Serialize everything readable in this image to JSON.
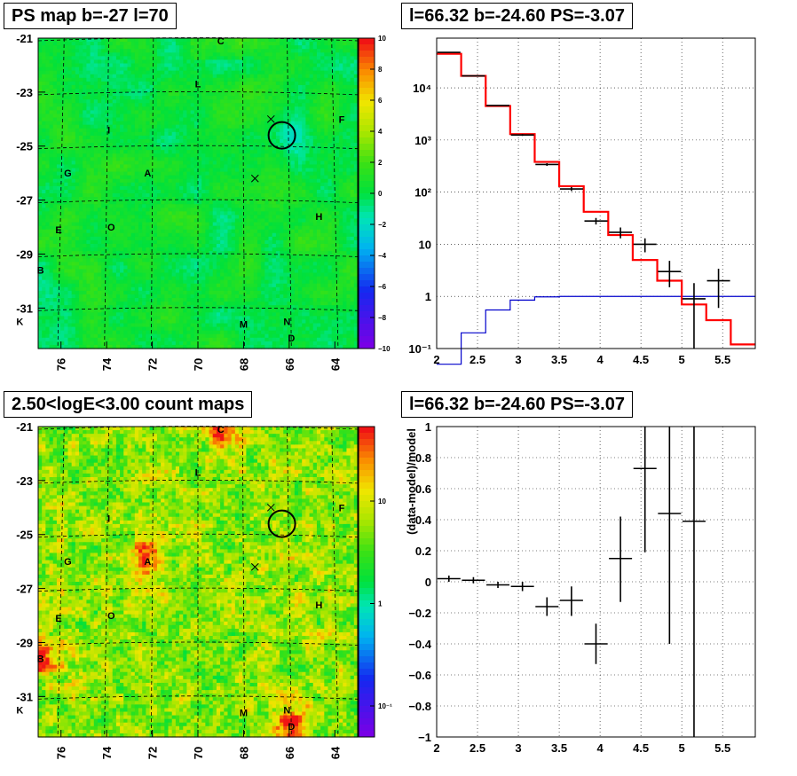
{
  "titles": {
    "top_left": "PS map b=-27 l=70",
    "top_right": "l=66.32 b=-24.60 PS=-3.07",
    "bottom_left": "2.50<logE<3.00 count maps",
    "bottom_right": "l=66.32 b=-24.60 PS=-3.07"
  },
  "colors": {
    "model_line": "#ff0000",
    "background_line": "#0000cc",
    "data_marker": "#000000",
    "highlight_circle": "#000000"
  },
  "chart_data": [
    {
      "type": "heatmap",
      "title": "PS map b=-27 l=70",
      "xlim": [
        63,
        77
      ],
      "ylim": [
        -32.5,
        -21
      ],
      "x_reversed": true,
      "xticks": [
        "76",
        "74",
        "72",
        "70",
        "68",
        "66",
        "64"
      ],
      "yticks": [
        "-21",
        "-23",
        "-25",
        "-27",
        "-29",
        "-31"
      ],
      "colorbar": {
        "range": [
          -10,
          10
        ],
        "ticks": [
          "10",
          "8",
          "6",
          "4",
          "2",
          "0",
          "−2",
          "−4",
          "−6",
          "−8",
          "−10"
        ]
      },
      "source_labels": [
        {
          "label": "C",
          "l": 69.0,
          "b": -21.1
        },
        {
          "label": "L",
          "l": 70.0,
          "b": -22.7
        },
        {
          "label": "F",
          "l": 63.7,
          "b": -24.0
        },
        {
          "label": "I",
          "l": 73.9,
          "b": -24.4
        },
        {
          "label": "G",
          "l": 75.7,
          "b": -26.0
        },
        {
          "label": "A",
          "l": 72.2,
          "b": -26.0
        },
        {
          "label": "H",
          "l": 64.7,
          "b": -27.6
        },
        {
          "label": "O",
          "l": 73.8,
          "b": -28.0
        },
        {
          "label": "E",
          "l": 76.1,
          "b": -28.1
        },
        {
          "label": "B",
          "l": 76.9,
          "b": -29.6
        },
        {
          "label": "K",
          "l": 77.8,
          "b": -31.5
        },
        {
          "label": "M",
          "l": 68.0,
          "b": -31.6
        },
        {
          "label": "N",
          "l": 66.1,
          "b": -31.5
        },
        {
          "label": "D",
          "l": 65.9,
          "b": -32.1
        }
      ],
      "crosses": [
        {
          "l": 66.8,
          "b": -24.0
        },
        {
          "l": 67.5,
          "b": -26.2
        }
      ],
      "circle": {
        "l": 66.32,
        "b": -24.6
      }
    },
    {
      "type": "line",
      "title": "l=66.32 b=-24.60 PS=-3.07",
      "xlim": [
        2,
        5.9
      ],
      "ylim": [
        0.1,
        90000
      ],
      "y_scale": "log",
      "xticks": [
        "2",
        "2.5",
        "3",
        "3.5",
        "4",
        "4.5",
        "5",
        "5.5"
      ],
      "yticks": [
        "10⁻¹",
        "1",
        "10",
        "10²",
        "10³",
        "10⁴"
      ],
      "grid": true,
      "steps_x": [
        2.0,
        2.3,
        2.6,
        2.9,
        3.2,
        3.5,
        3.8,
        4.1,
        4.4,
        4.7,
        5.0,
        5.3,
        5.6,
        5.9
      ],
      "model_red": [
        45000,
        17000,
        4500,
        1300,
        380,
        130,
        42,
        15,
        5,
        2,
        0.7,
        0.35,
        0.12
      ],
      "background_blue": [
        0.05,
        0.2,
        0.55,
        0.85,
        0.98,
        1.0,
        1.0,
        1.0,
        1.0,
        1.0,
        1.0,
        1.0,
        1.0
      ],
      "data_points": [
        {
          "x": 2.15,
          "y": 48000,
          "ylo": 47000,
          "yhi": 49000
        },
        {
          "x": 2.45,
          "y": 17000,
          "ylo": 16700,
          "yhi": 17300
        },
        {
          "x": 2.75,
          "y": 4600,
          "ylo": 4500,
          "yhi": 4700
        },
        {
          "x": 3.05,
          "y": 1250,
          "ylo": 1200,
          "yhi": 1300
        },
        {
          "x": 3.35,
          "y": 340,
          "ylo": 320,
          "yhi": 360
        },
        {
          "x": 3.65,
          "y": 115,
          "ylo": 105,
          "yhi": 125
        },
        {
          "x": 3.95,
          "y": 28,
          "ylo": 24,
          "yhi": 32
        },
        {
          "x": 4.25,
          "y": 17,
          "ylo": 13,
          "yhi": 21
        },
        {
          "x": 4.55,
          "y": 10,
          "ylo": 7,
          "yhi": 13
        },
        {
          "x": 4.85,
          "y": 3,
          "ylo": 1.5,
          "yhi": 4.8
        },
        {
          "x": 5.15,
          "y": 0.9,
          "ylo": 0.1,
          "yhi": 1.8
        },
        {
          "x": 5.45,
          "y": 2,
          "ylo": 0.6,
          "yhi": 3.4
        }
      ]
    },
    {
      "type": "heatmap",
      "title": "2.50<logE<3.00 count maps",
      "xlim": [
        63,
        77
      ],
      "ylim": [
        -32.5,
        -21
      ],
      "x_reversed": true,
      "xticks": [
        "76",
        "74",
        "72",
        "70",
        "68",
        "66",
        "64"
      ],
      "yticks": [
        "-21",
        "-23",
        "-25",
        "-27",
        "-29",
        "-31"
      ],
      "colorbar": {
        "scale": "log",
        "ticks": [
          "10",
          "1",
          "10⁻¹"
        ]
      },
      "hotspots": [
        {
          "label": "A",
          "l": 72.2,
          "b": -26.0
        },
        {
          "label": "B",
          "l": 76.9,
          "b": -29.6
        },
        {
          "label": "C",
          "l": 69.0,
          "b": -21.1
        },
        {
          "label": "D",
          "l": 65.9,
          "b": -32.1
        }
      ],
      "source_labels": [
        {
          "label": "C",
          "l": 69.0,
          "b": -21.1
        },
        {
          "label": "L",
          "l": 70.0,
          "b": -22.7
        },
        {
          "label": "F",
          "l": 63.7,
          "b": -24.0
        },
        {
          "label": "I",
          "l": 73.9,
          "b": -24.4
        },
        {
          "label": "G",
          "l": 75.7,
          "b": -26.0
        },
        {
          "label": "A",
          "l": 72.2,
          "b": -26.0
        },
        {
          "label": "H",
          "l": 64.7,
          "b": -27.6
        },
        {
          "label": "O",
          "l": 73.8,
          "b": -28.0
        },
        {
          "label": "E",
          "l": 76.1,
          "b": -28.1
        },
        {
          "label": "B",
          "l": 76.9,
          "b": -29.6
        },
        {
          "label": "K",
          "l": 77.8,
          "b": -31.5
        },
        {
          "label": "M",
          "l": 68.0,
          "b": -31.6
        },
        {
          "label": "N",
          "l": 66.1,
          "b": -31.5
        },
        {
          "label": "D",
          "l": 65.9,
          "b": -32.1
        }
      ],
      "crosses": [
        {
          "l": 66.8,
          "b": -24.0
        },
        {
          "l": 67.5,
          "b": -26.2
        }
      ],
      "circle": {
        "l": 66.32,
        "b": -24.6
      }
    },
    {
      "type": "scatter",
      "title": "l=66.32 b=-24.60 PS=-3.07",
      "ylabel": "(data-model)/model",
      "xlim": [
        2,
        5.9
      ],
      "ylim": [
        -1,
        1
      ],
      "xticks": [
        "2",
        "2.5",
        "3",
        "3.5",
        "4",
        "4.5",
        "5",
        "5.5"
      ],
      "yticks": [
        "1",
        "0.8",
        "0.6",
        "0.4",
        "0.2",
        "0",
        "−0.2",
        "−0.4",
        "−0.6",
        "−0.8",
        "−1"
      ],
      "grid": true,
      "data_points": [
        {
          "x": 2.15,
          "y": 0.02,
          "ylo": 0.0,
          "yhi": 0.04
        },
        {
          "x": 2.45,
          "y": 0.01,
          "ylo": -0.01,
          "yhi": 0.03
        },
        {
          "x": 2.75,
          "y": -0.02,
          "ylo": -0.04,
          "yhi": 0.0
        },
        {
          "x": 3.05,
          "y": -0.03,
          "ylo": -0.06,
          "yhi": 0.0
        },
        {
          "x": 3.35,
          "y": -0.16,
          "ylo": -0.22,
          "yhi": -0.1
        },
        {
          "x": 3.65,
          "y": -0.12,
          "ylo": -0.22,
          "yhi": -0.03
        },
        {
          "x": 3.95,
          "y": -0.4,
          "ylo": -0.53,
          "yhi": -0.27
        },
        {
          "x": 4.25,
          "y": 0.15,
          "ylo": -0.13,
          "yhi": 0.42
        },
        {
          "x": 4.55,
          "y": 0.73,
          "ylo": 0.19,
          "yhi": 1.0
        },
        {
          "x": 4.85,
          "y": 0.44,
          "ylo": -0.4,
          "yhi": 1.0
        },
        {
          "x": 5.15,
          "y": 0.39,
          "ylo": -1.0,
          "yhi": 1.0
        }
      ]
    }
  ]
}
